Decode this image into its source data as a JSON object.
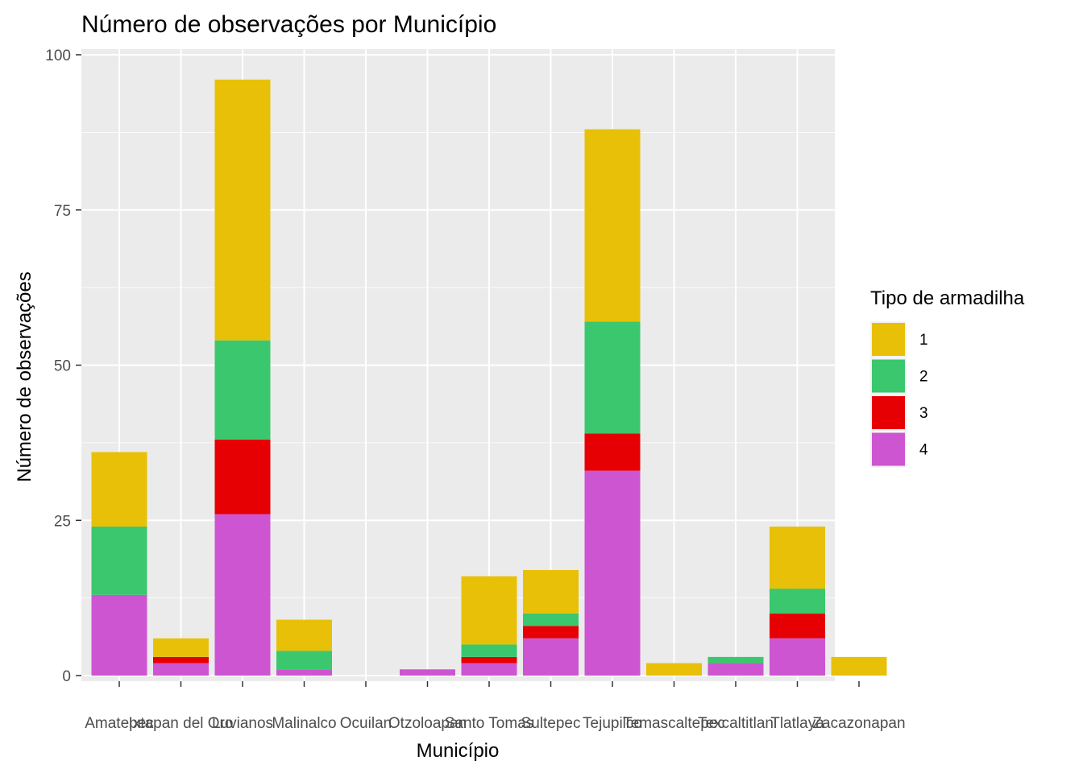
{
  "chart_data": {
    "type": "bar",
    "stacked": true,
    "title": "Número de observações por Município",
    "xlabel": "Município",
    "ylabel": "Número de observações",
    "ylim": [
      0,
      100
    ],
    "yticks": [
      0,
      25,
      50,
      75,
      100
    ],
    "grid": true,
    "legend": {
      "title": "Tipo de armadilha",
      "position": "right"
    },
    "categories": [
      "Amatepec",
      "Ixtapan del Oro",
      "Luvianos",
      "Malinalco",
      "Ocuilan",
      "Otzoloapan",
      "Santo Tomas",
      "Sultepec",
      "Tejupilco",
      "Temascaltepec",
      "Texcaltitlan",
      "Tlatlaya",
      "Zacazonapan"
    ],
    "series": [
      {
        "name": "1",
        "color": "#E8C007",
        "values": [
          12,
          3,
          42,
          5,
          0,
          0,
          11,
          7,
          31,
          2,
          0,
          10,
          3
        ]
      },
      {
        "name": "2",
        "color": "#3BC76E",
        "values": [
          11,
          0,
          16,
          3,
          0,
          0,
          2,
          2,
          18,
          0,
          1,
          4,
          0
        ]
      },
      {
        "name": "3",
        "color": "#E60003",
        "values": [
          0,
          1,
          12,
          0,
          0,
          0,
          1,
          2,
          6,
          0,
          0,
          4,
          0
        ]
      },
      {
        "name": "4",
        "color": "#CE55D1",
        "values": [
          13,
          2,
          26,
          1,
          0,
          1,
          2,
          6,
          33,
          0,
          2,
          6,
          0
        ]
      }
    ]
  }
}
